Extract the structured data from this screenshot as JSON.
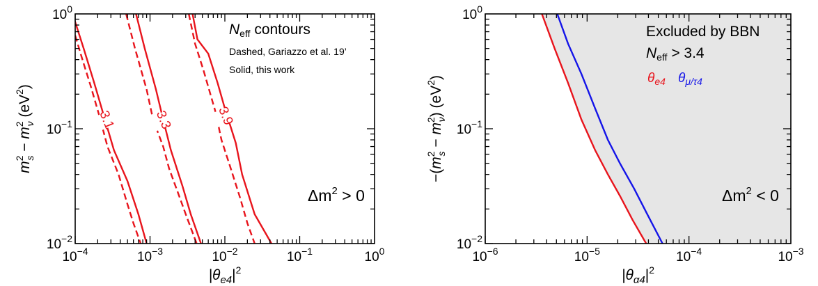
{
  "chart_data": [
    {
      "type": "line",
      "xscale": "log",
      "yscale": "log",
      "xlim": [
        0.0001,
        1
      ],
      "ylim": [
        0.01,
        1
      ],
      "xlabel": "|θe4|²",
      "ylabel": "m²s − m²ν (eV²)",
      "x_ticks": [
        {
          "value": 0.0001,
          "base": "10",
          "exp": "−4"
        },
        {
          "value": 0.001,
          "base": "10",
          "exp": "−3"
        },
        {
          "value": 0.01,
          "base": "10",
          "exp": "−2"
        },
        {
          "value": 0.1,
          "base": "10",
          "exp": "−1"
        },
        {
          "value": 1,
          "base": "10",
          "exp": "0"
        }
      ],
      "y_ticks": [
        {
          "value": 0.01,
          "base": "10",
          "exp": "−2"
        },
        {
          "value": 0.1,
          "base": "10",
          "exp": "−1"
        },
        {
          "value": 1,
          "base": "10",
          "exp": "0"
        }
      ],
      "annotations": {
        "title_main": "N",
        "title_sub": "eff",
        "title_rest": " contours",
        "line1": "Dashed, Gariazzo et al. 19’",
        "line2": "Solid, this work",
        "region_delta": "Δm",
        "region_sup": "2",
        "region_rel": " > 0"
      },
      "series": [
        {
          "label": "3.1",
          "style": "solid",
          "color": "#e8141c",
          "points": [
            [
              9e-05,
              1
            ],
            [
              0.0001,
              0.85
            ],
            [
              0.00013,
              0.5
            ],
            [
              0.00018,
              0.25
            ],
            [
              0.00025,
              0.12
            ],
            [
              0.00033,
              0.065
            ],
            [
              0.0005,
              0.035
            ],
            [
              0.0007,
              0.018
            ],
            [
              0.0009,
              0.01
            ]
          ]
        },
        {
          "label": "3.1",
          "style": "dashed",
          "color": "#e8141c",
          "points": [
            [
              0.0001,
              0.65
            ],
            [
              0.000125,
              0.4
            ],
            [
              0.00016,
              0.24
            ],
            [
              0.00021,
              0.13
            ],
            [
              0.00027,
              0.07
            ],
            [
              0.00038,
              0.04
            ],
            [
              0.0005,
              0.022
            ],
            [
              0.0006,
              0.015
            ],
            [
              0.00075,
              0.01
            ]
          ]
        },
        {
          "label": "3.3",
          "style": "solid",
          "color": "#e8141c",
          "points": [
            [
              0.00065,
              1
            ],
            [
              0.00085,
              0.5
            ],
            [
              0.0012,
              0.22
            ],
            [
              0.0015,
              0.12
            ],
            [
              0.0019,
              0.065
            ],
            [
              0.0027,
              0.032
            ],
            [
              0.0035,
              0.018
            ],
            [
              0.0048,
              0.01
            ]
          ]
        },
        {
          "label": "3.3",
          "style": "dashed",
          "color": "#e8141c",
          "points": [
            [
              0.00048,
              1
            ],
            [
              0.00063,
              0.5
            ],
            [
              0.0009,
              0.22
            ],
            [
              0.0011,
              0.12
            ],
            [
              0.0015,
              0.07
            ],
            [
              0.0018,
              0.045
            ],
            [
              0.0025,
              0.025
            ],
            [
              0.003,
              0.018
            ],
            [
              0.0042,
              0.01
            ]
          ]
        },
        {
          "label": "3.9",
          "style": "solid",
          "color": "#e8141c",
          "points": [
            [
              0.0037,
              1
            ],
            [
              0.0043,
              0.6
            ],
            [
              0.006,
              0.45
            ],
            [
              0.008,
              0.25
            ],
            [
              0.01,
              0.15
            ],
            [
              0.014,
              0.075
            ],
            [
              0.017,
              0.04
            ],
            [
              0.025,
              0.018
            ],
            [
              0.042,
              0.01
            ]
          ]
        },
        {
          "label": "3.9",
          "style": "dashed",
          "color": "#e8141c",
          "points": [
            [
              0.0033,
              1
            ],
            [
              0.004,
              0.55
            ],
            [
              0.0052,
              0.32
            ],
            [
              0.0075,
              0.14
            ],
            [
              0.009,
              0.08
            ],
            [
              0.012,
              0.045
            ],
            [
              0.016,
              0.025
            ],
            [
              0.02,
              0.015
            ],
            [
              0.025,
              0.01
            ]
          ]
        }
      ]
    },
    {
      "type": "area",
      "xscale": "log",
      "yscale": "log",
      "xlim": [
        1e-06,
        0.001
      ],
      "ylim": [
        0.01,
        1
      ],
      "xlabel": "|θα4|²",
      "ylabel": "−(m²s − m²ν) (eV²)",
      "x_ticks": [
        {
          "value": 1e-06,
          "base": "10",
          "exp": "−6"
        },
        {
          "value": 1e-05,
          "base": "10",
          "exp": "−5"
        },
        {
          "value": 0.0001,
          "base": "10",
          "exp": "−4"
        },
        {
          "value": 0.001,
          "base": "10",
          "exp": "−3"
        }
      ],
      "y_ticks": [
        {
          "value": 0.01,
          "base": "10",
          "exp": "−2"
        },
        {
          "value": 0.1,
          "base": "10",
          "exp": "−1"
        },
        {
          "value": 1,
          "base": "10",
          "exp": "0"
        }
      ],
      "fill_color": "#e6e6e6",
      "annotations": {
        "excluded": "Excluded by BBN",
        "neff_main": "N",
        "neff_sub": "eff",
        "neff_rest": " > 3.4",
        "legend_e": "θe4",
        "legend_mu": "θμ/τ4",
        "region_delta": "Δm",
        "region_sup": "2",
        "region_rel": " < 0"
      },
      "series": [
        {
          "label": "θe4",
          "color": "#e8141c",
          "points": [
            [
              3.6e-06,
              1
            ],
            [
              4.8e-06,
              0.5
            ],
            [
              6.5e-06,
              0.25
            ],
            [
              8.8e-06,
              0.12
            ],
            [
              1.2e-05,
              0.065
            ],
            [
              1.6e-05,
              0.04
            ],
            [
              2.1e-05,
              0.026
            ],
            [
              2.8e-05,
              0.016
            ],
            [
              3.8e-05,
              0.01
            ]
          ]
        },
        {
          "label": "θμ/τ4",
          "color": "#1414e8",
          "points": [
            [
              5.1e-06,
              1
            ],
            [
              6.5e-06,
              0.55
            ],
            [
              8.8e-06,
              0.3
            ],
            [
              1.2e-05,
              0.15
            ],
            [
              1.6e-05,
              0.08
            ],
            [
              2.1e-05,
              0.05
            ],
            [
              2.9e-05,
              0.03
            ],
            [
              3.9e-05,
              0.018
            ],
            [
              5.5e-05,
              0.01
            ]
          ]
        }
      ]
    }
  ]
}
